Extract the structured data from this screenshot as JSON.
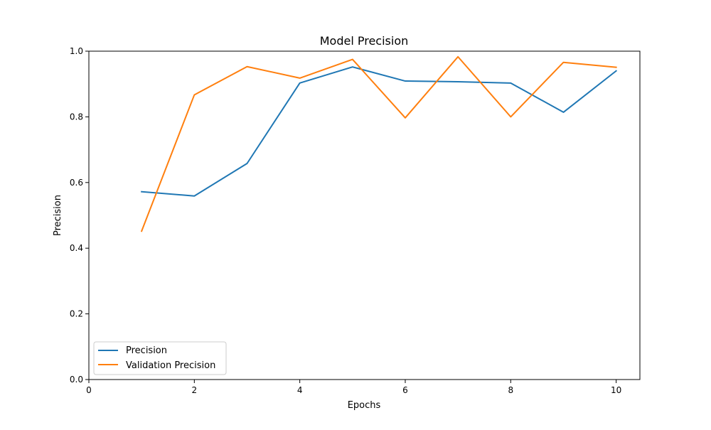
{
  "chart_data": {
    "type": "line",
    "title": "Model Precision",
    "xlabel": "Epochs",
    "ylabel": "Precision",
    "xlim": [
      0,
      10.45
    ],
    "ylim": [
      0,
      1.0
    ],
    "xticks": [
      0,
      2,
      4,
      6,
      8,
      10
    ],
    "xtick_labels": [
      "0",
      "2",
      "4",
      "6",
      "8",
      "10"
    ],
    "yticks": [
      0,
      0.2,
      0.4,
      0.6,
      0.8,
      1.0
    ],
    "ytick_labels": [
      "0.0",
      "0.2",
      "0.4",
      "0.6",
      "0.8",
      "1.0"
    ],
    "grid": false,
    "legend_position": "lower-left",
    "x": [
      1,
      2,
      3,
      4,
      5,
      6,
      7,
      8,
      9,
      10
    ],
    "series": [
      {
        "name": "Precision",
        "color": "#1f77b4",
        "values": [
          0.572,
          0.559,
          0.658,
          0.903,
          0.952,
          0.909,
          0.907,
          0.903,
          0.814,
          0.94
        ]
      },
      {
        "name": "Validation Precision",
        "color": "#ff7f0e",
        "values": [
          0.452,
          0.867,
          0.953,
          0.918,
          0.975,
          0.797,
          0.983,
          0.8,
          0.966,
          0.951
        ]
      }
    ]
  }
}
